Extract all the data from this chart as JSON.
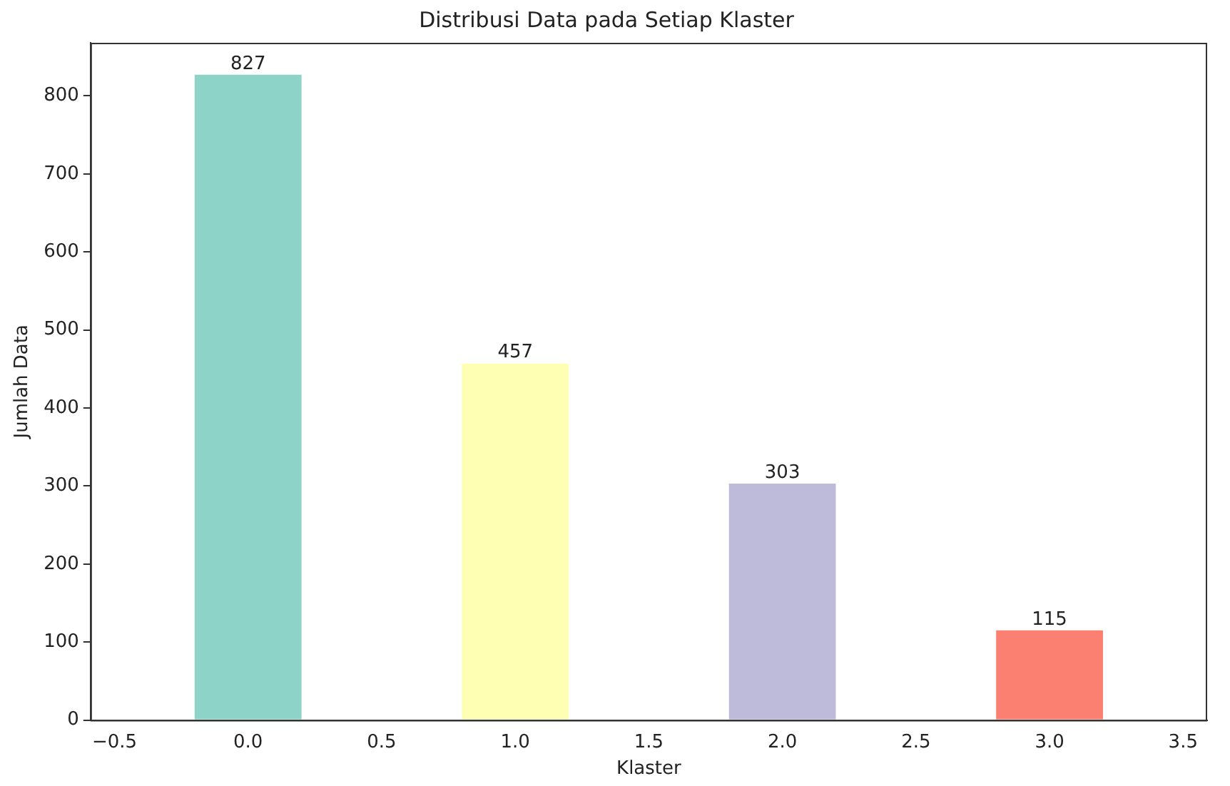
{
  "chart_data": {
    "type": "bar",
    "title": "Distribusi Data pada Setiap Klaster",
    "xlabel": "Klaster",
    "ylabel": "Jumlah Data",
    "x": [
      0,
      1,
      2,
      3
    ],
    "values": [
      827,
      457,
      303,
      115
    ],
    "colors": [
      "#8dd3c7",
      "#ffffb3",
      "#bebada",
      "#fb8072"
    ],
    "xlim": [
      -0.59,
      3.59
    ],
    "xticks": [
      {
        "value": -0.5,
        "label": "−0.5"
      },
      {
        "value": 0,
        "label": "0.0"
      },
      0.5,
      {
        "value": 1,
        "label": "1.0"
      },
      1.5,
      {
        "value": 2,
        "label": "2.0"
      },
      2.5,
      {
        "value": 3,
        "label": "3.0"
      },
      3.5
    ],
    "ylim": [
      0,
      868
    ],
    "yticks": [
      0,
      100,
      200,
      300,
      400,
      500,
      600,
      700,
      800
    ],
    "data_labels": true,
    "grid": false,
    "legend": false
  }
}
